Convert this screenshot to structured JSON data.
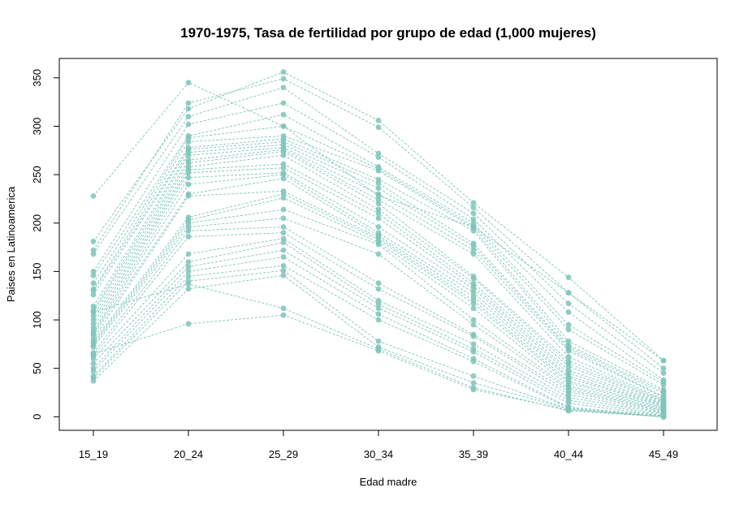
{
  "chart_data": {
    "type": "line",
    "title": "1970-1975, Tasa de fertilidad por grupo de edad (1,000 mujeres)",
    "xlabel": "Edad madre",
    "ylabel": "Paises en Latinoamerica",
    "categories": [
      "15_19",
      "20_24",
      "25_29",
      "30_34",
      "35_39",
      "40_44",
      "45_49"
    ],
    "yticks": [
      0,
      50,
      100,
      150,
      200,
      250,
      300,
      350
    ],
    "ylim": [
      -14,
      370
    ],
    "grid": false,
    "legend": "none",
    "series_color": "#7fc4b8",
    "line_style": "dashed",
    "marker": "filled-circle",
    "series": [
      {
        "values": [
          228,
          345,
          300,
          228,
          196,
          128,
          50
        ]
      },
      {
        "values": [
          181,
          318,
          356,
          306,
          221,
          144,
          58
        ]
      },
      {
        "values": [
          172,
          324,
          349,
          299,
          216,
          128,
          58
        ]
      },
      {
        "values": [
          168,
          310,
          340,
          272,
          210,
          117,
          45
        ]
      },
      {
        "values": [
          150,
          302,
          324,
          268,
          204,
          108,
          38
        ]
      },
      {
        "values": [
          146,
          290,
          312,
          258,
          200,
          95,
          36
        ]
      },
      {
        "values": [
          138,
          288,
          300,
          256,
          197,
          90,
          33
        ]
      },
      {
        "values": [
          132,
          284,
          290,
          254,
          195,
          78,
          28
        ]
      },
      {
        "values": [
          130,
          278,
          287,
          245,
          192,
          74,
          26
        ]
      },
      {
        "values": [
          126,
          276,
          284,
          241,
          179,
          72,
          24
        ]
      },
      {
        "values": [
          114,
          273,
          281,
          236,
          176,
          70,
          21
        ]
      },
      {
        "values": [
          110,
          270,
          278,
          230,
          172,
          68,
          20
        ]
      },
      {
        "values": [
          108,
          265,
          276,
          224,
          168,
          62,
          18
        ]
      },
      {
        "values": [
          104,
          262,
          274,
          220,
          145,
          58,
          17
        ]
      },
      {
        "values": [
          100,
          258,
          270,
          214,
          143,
          55,
          16
        ]
      },
      {
        "values": [
          96,
          255,
          261,
          210,
          138,
          52,
          15
        ]
      },
      {
        "values": [
          92,
          252,
          257,
          205,
          135,
          48,
          14
        ]
      },
      {
        "values": [
          88,
          247,
          252,
          196,
          132,
          45,
          13
        ]
      },
      {
        "values": [
          86,
          240,
          250,
          190,
          128,
          42,
          12
        ]
      },
      {
        "values": [
          84,
          230,
          246,
          187,
          124,
          40,
          11
        ]
      },
      {
        "values": [
          80,
          228,
          233,
          185,
          120,
          37,
          10
        ]
      },
      {
        "values": [
          78,
          206,
          230,
          183,
          117,
          35,
          9
        ]
      },
      {
        "values": [
          76,
          203,
          226,
          180,
          112,
          32,
          8
        ]
      },
      {
        "values": [
          74,
          200,
          214,
          178,
          100,
          30,
          7
        ]
      },
      {
        "values": [
          72,
          196,
          205,
          168,
          95,
          28,
          6
        ]
      },
      {
        "values": [
          66,
          192,
          196,
          138,
          85,
          26,
          5
        ]
      },
      {
        "values": [
          63,
          186,
          190,
          132,
          83,
          23,
          4
        ]
      },
      {
        "values": [
          60,
          168,
          184,
          120,
          75,
          20,
          3
        ]
      },
      {
        "values": [
          55,
          160,
          180,
          116,
          70,
          17,
          2
        ]
      },
      {
        "values": [
          50,
          155,
          172,
          112,
          67,
          14,
          1
        ]
      },
      {
        "values": [
          47,
          150,
          165,
          106,
          60,
          10,
          1
        ]
      },
      {
        "values": [
          42,
          145,
          156,
          100,
          57,
          9,
          0
        ]
      },
      {
        "values": [
          40,
          140,
          151,
          78,
          42,
          8,
          0
        ]
      },
      {
        "values": [
          37,
          132,
          146,
          72,
          35,
          8,
          0
        ]
      },
      {
        "values": [
          65,
          96,
          105,
          68,
          28,
          7,
          0
        ]
      },
      {
        "values": [
          108,
          137,
          112,
          70,
          30,
          6,
          0
        ]
      }
    ]
  }
}
